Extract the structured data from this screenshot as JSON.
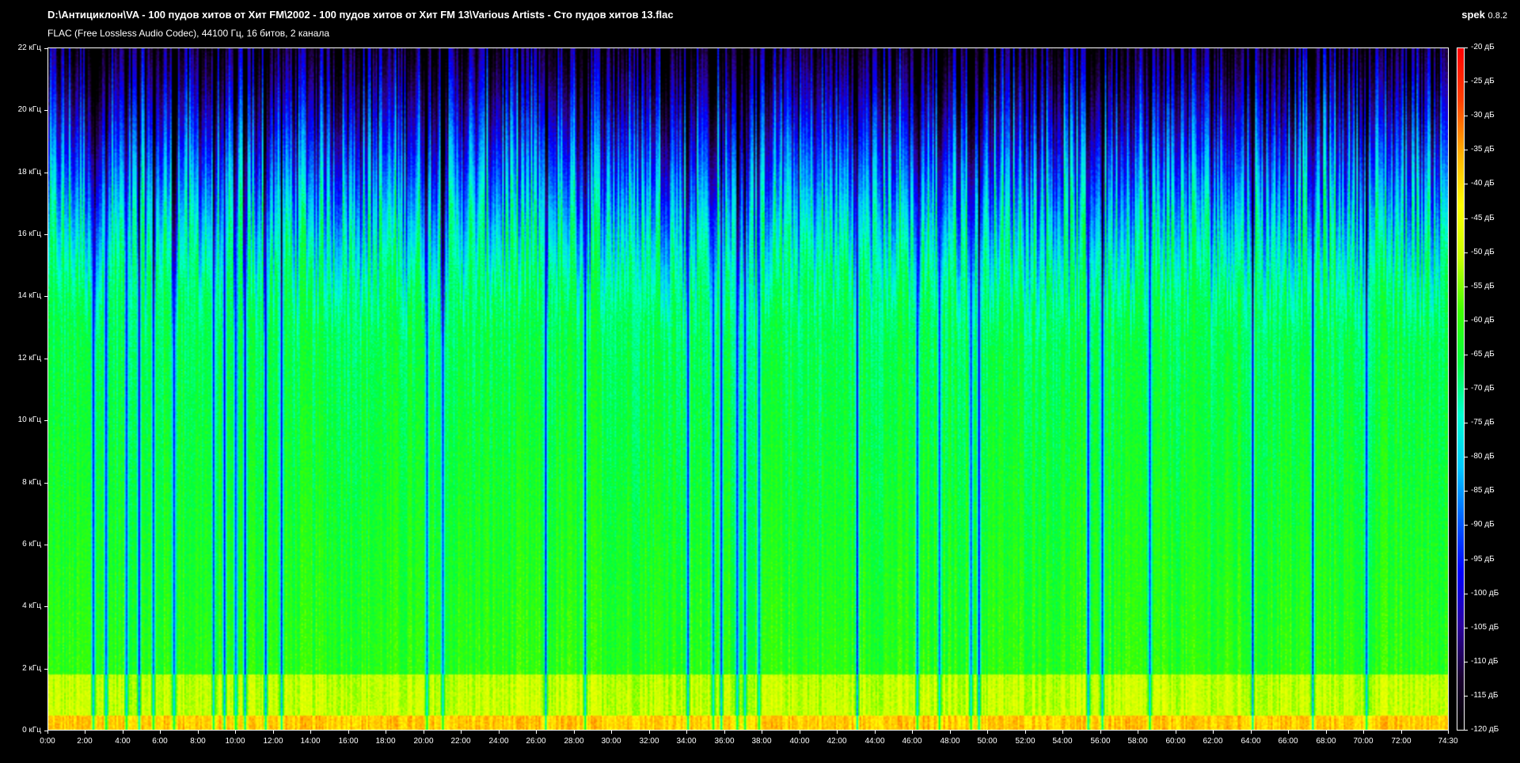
{
  "window": {
    "title": "D:\\Антициклон\\VA - 100 пудов хитов от Хит FM\\2002 - 100 пудов хитов от Хит FM 13\\Various Artists - Сто пудов хитов 13.flac",
    "subtitle": "FLAC (Free Lossless Audio Codec), 44100 Гц, 16 битов, 2 канала",
    "app_name": "spek",
    "app_version": "0.8.2"
  },
  "colors": {
    "background": "#000000",
    "text": "#ffffff",
    "palette": [
      "#000000",
      "#1a0030",
      "#2a00a0",
      "#0000ff",
      "#0060ff",
      "#00c8ff",
      "#00ffd0",
      "#00ff40",
      "#40ff00",
      "#c8ff00",
      "#ffff00",
      "#ffb000",
      "#ff4000",
      "#ff0000"
    ]
  },
  "chart_data": {
    "type": "heatmap",
    "title": "",
    "xlabel": "",
    "ylabel": "",
    "x_axis": {
      "unit": "time (m:ss)",
      "range": [
        "0:00",
        "74:30"
      ],
      "range_seconds": [
        0,
        4470
      ],
      "tick_labels": [
        "0:00",
        "2:00",
        "4:00",
        "6:00",
        "8:00",
        "10:00",
        "12:00",
        "14:00",
        "16:00",
        "18:00",
        "20:00",
        "22:00",
        "24:00",
        "26:00",
        "28:00",
        "30:00",
        "32:00",
        "34:00",
        "36:00",
        "38:00",
        "40:00",
        "42:00",
        "44:00",
        "46:00",
        "48:00",
        "50:00",
        "52:00",
        "54:00",
        "56:00",
        "58:00",
        "60:00",
        "62:00",
        "64:00",
        "66:00",
        "68:00",
        "70:00",
        "72:00",
        "74:30"
      ],
      "tick_seconds": [
        0,
        120,
        240,
        360,
        480,
        600,
        720,
        840,
        960,
        1080,
        1200,
        1320,
        1440,
        1560,
        1680,
        1800,
        1920,
        2040,
        2160,
        2280,
        2400,
        2520,
        2640,
        2760,
        2880,
        3000,
        3120,
        3240,
        3360,
        3480,
        3600,
        3720,
        3840,
        3960,
        4080,
        4200,
        4320,
        4470
      ]
    },
    "y_axis": {
      "unit": "kHz",
      "range": [
        0,
        22
      ],
      "tick_labels": [
        "0 кГц",
        "2 кГц",
        "4 кГц",
        "6 кГц",
        "8 кГц",
        "10 кГц",
        "12 кГц",
        "14 кГц",
        "16 кГц",
        "18 кГц",
        "20 кГц",
        "22 кГц"
      ],
      "tick_values": [
        0,
        2,
        4,
        6,
        8,
        10,
        12,
        14,
        16,
        18,
        20,
        22
      ]
    },
    "colorbar": {
      "unit": "dB",
      "range": [
        -120,
        -20
      ],
      "tick_labels": [
        "-20 дБ",
        "-25 дБ",
        "-30 дБ",
        "-35 дБ",
        "-40 дБ",
        "-45 дБ",
        "-50 дБ",
        "-55 дБ",
        "-60 дБ",
        "-65 дБ",
        "-70 дБ",
        "-75 дБ",
        "-80 дБ",
        "-85 дБ",
        "-90 дБ",
        "-95 дБ",
        "-100 дБ",
        "-105 дБ",
        "-110 дБ",
        "-115 дБ",
        "-120 дБ"
      ],
      "tick_values": [
        -20,
        -25,
        -30,
        -35,
        -40,
        -45,
        -50,
        -55,
        -60,
        -65,
        -70,
        -75,
        -80,
        -85,
        -90,
        -95,
        -100,
        -105,
        -110,
        -115,
        -120
      ]
    },
    "dark_gaps_seconds": [
      140,
      180,
      250,
      290,
      335,
      400,
      525,
      560,
      595,
      625,
      695,
      745,
      1210,
      1260,
      1590,
      1715,
      2045,
      2125,
      2150,
      2200,
      2225,
      2270,
      2585,
      2775,
      2845,
      2950,
      2975,
      3320,
      3370,
      3520,
      3850,
      4040,
      4210
    ]
  }
}
